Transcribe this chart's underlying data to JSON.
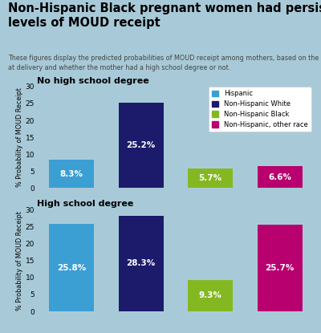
{
  "title": "Non-Hispanic Black pregnant women had persistently lower\nlevels of MOUD receipt",
  "subtitle": "These figures display the predicted probabilities of MOUD receipt among mothers, based on the mother's age\nat delivery and whether the mother had a high school degree or not.",
  "background_color": "#a8cad8",
  "header_bg": "#ffffff",
  "chart1_title": "No high school degree",
  "chart2_title": "High school degree",
  "categories": [
    "Hispanic",
    "Non-Hispanic White",
    "Non-Hispanic Black",
    "Non-Hispanic, other race"
  ],
  "colors": [
    "#3b9fd4",
    "#1c1a6b",
    "#84b821",
    "#b8006e"
  ],
  "chart1_values": [
    8.3,
    25.2,
    5.7,
    6.6
  ],
  "chart2_values": [
    25.8,
    28.3,
    9.3,
    25.7
  ],
  "ylabel": "% Probability of MOUD Receipt",
  "ylim": [
    0,
    30
  ],
  "yticks": [
    0,
    5,
    10,
    15,
    20,
    25,
    30
  ],
  "legend_labels": [
    "Hispanic",
    "Non-Hispanic White",
    "Non-Hispanic Black",
    "Non-Hispanic, other race"
  ],
  "title_fontsize": 10.5,
  "subtitle_fontsize": 5.8,
  "bar_label_fontsize": 7.5,
  "chart_title_fontsize": 8.0,
  "legend_fontsize": 6.0,
  "ytick_fontsize": 6.5,
  "ylabel_fontsize": 5.8
}
